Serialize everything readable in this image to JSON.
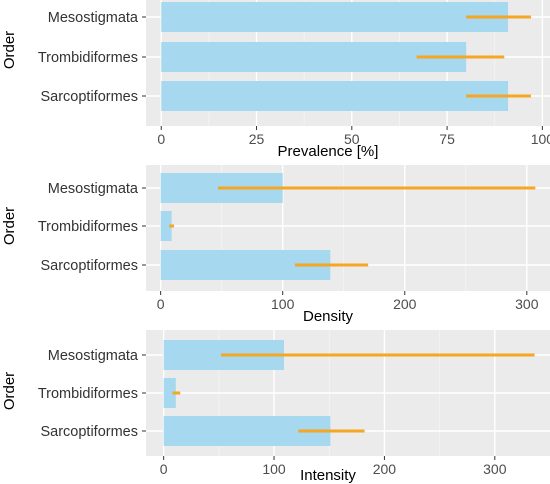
{
  "colors": {
    "panel": "#ebebeb",
    "grid_major": "#ffffff",
    "grid_minor": "#f5f5f5",
    "bar": "#a6d8ef",
    "error": "#f5a623",
    "tick": "#333333"
  },
  "chart_data": [
    {
      "type": "bar",
      "orientation": "horizontal",
      "categories": [
        "Mesostigmata",
        "Trombidiformes",
        "Sarcoptiformes"
      ],
      "values": [
        91,
        80,
        91
      ],
      "ci_low": [
        80,
        67,
        80
      ],
      "ci_high": [
        97,
        90,
        97
      ],
      "xlabel": "Prevalence [%]",
      "ylabel": "Order",
      "xlim": [
        -4,
        102
      ],
      "xticks": [
        0,
        25,
        50,
        75,
        100
      ],
      "xtick_labels": [
        "0",
        "25",
        "50",
        "75",
        "100"
      ],
      "grid": true
    },
    {
      "type": "bar",
      "orientation": "horizontal",
      "categories": [
        "Mesostigmata",
        "Trombidiformes",
        "Sarcoptiformes"
      ],
      "values": [
        100,
        9,
        139
      ],
      "ci_low": [
        47,
        7,
        110
      ],
      "ci_high": [
        307,
        11,
        170
      ],
      "xlabel": "Density",
      "ylabel": "Order",
      "xlim": [
        -12,
        319
      ],
      "xticks": [
        0,
        100,
        200,
        300
      ],
      "xtick_labels": [
        "0",
        "100",
        "200",
        "300"
      ],
      "grid": true
    },
    {
      "type": "bar",
      "orientation": "horizontal",
      "categories": [
        "Mesostigmata",
        "Trombidiformes",
        "Sarcoptiformes"
      ],
      "values": [
        109,
        11,
        151
      ],
      "ci_low": [
        52,
        8,
        122
      ],
      "ci_high": [
        336,
        15,
        182
      ],
      "xlabel": "Intensity",
      "ylabel": "Order",
      "xlim": [
        -16,
        350
      ],
      "xticks": [
        0,
        100,
        200,
        300
      ],
      "xtick_labels": [
        "0",
        "100",
        "200",
        "300"
      ],
      "grid": true
    }
  ]
}
